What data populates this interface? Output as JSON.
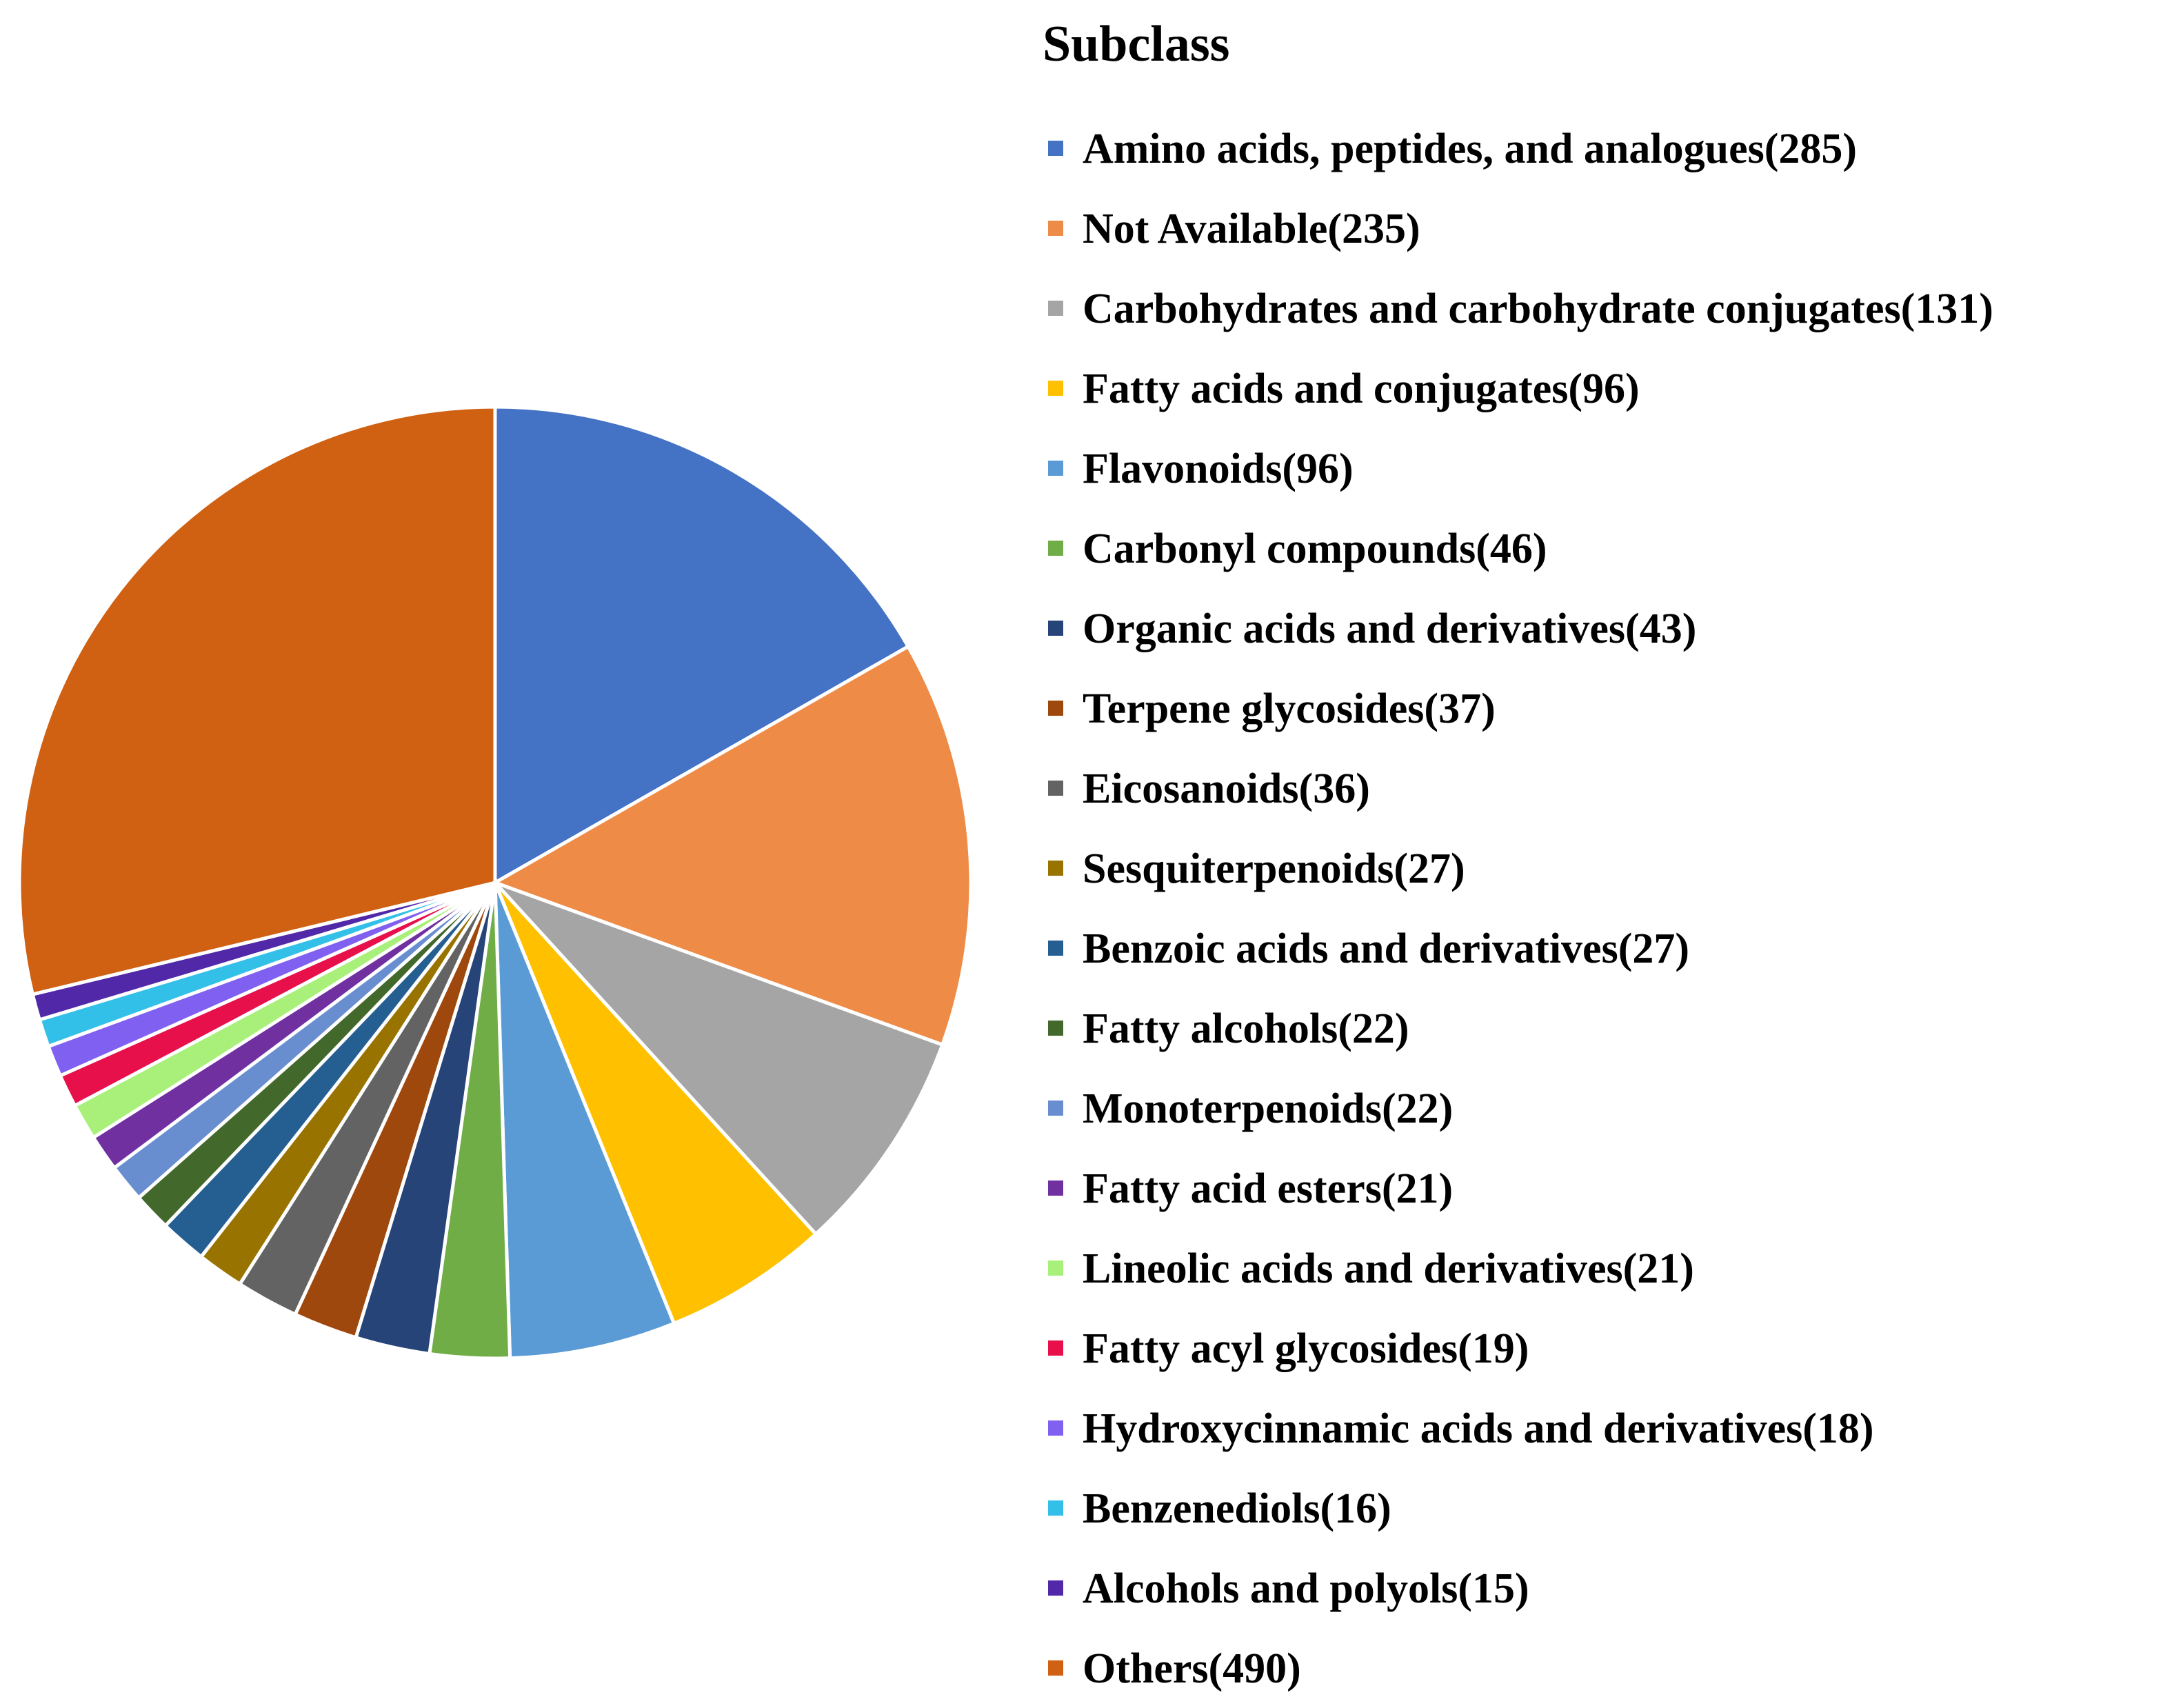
{
  "chart_data": {
    "type": "pie",
    "title": "",
    "legend_title": "Subclass",
    "legend_position": "right",
    "start_angle_deg": 0,
    "direction": "clockwise",
    "slices": [
      {
        "label": "Amino acids, peptides, and analogues(285)",
        "name": "Amino acids, peptides, and analogues",
        "value": 285,
        "color": "#4472C4"
      },
      {
        "label": "Not Available(235)",
        "name": "Not Available",
        "value": 235,
        "color": "#ED8B47"
      },
      {
        "label": "Carbohydrates and carbohydrate conjugates(131)",
        "name": "Carbohydrates and carbohydrate conjugates",
        "value": 131,
        "color": "#A5A5A5"
      },
      {
        "label": "Fatty acids and conjugates(96)",
        "name": "Fatty acids and conjugates",
        "value": 96,
        "color": "#FFC000"
      },
      {
        "label": "Flavonoids(96)",
        "name": "Flavonoids",
        "value": 96,
        "color": "#5B9BD5"
      },
      {
        "label": "Carbonyl compounds(46)",
        "name": "Carbonyl compounds",
        "value": 46,
        "color": "#70AD47"
      },
      {
        "label": "Organic acids and derivatives(43)",
        "name": "Organic acids and derivatives",
        "value": 43,
        "color": "#264478"
      },
      {
        "label": "Terpene glycosides(37)",
        "name": "Terpene glycosides",
        "value": 37,
        "color": "#9E480E"
      },
      {
        "label": "Eicosanoids(36)",
        "name": "Eicosanoids",
        "value": 36,
        "color": "#636363"
      },
      {
        "label": "Sesquiterpenoids(27)",
        "name": "Sesquiterpenoids",
        "value": 27,
        "color": "#997300"
      },
      {
        "label": "Benzoic acids and derivatives(27)",
        "name": "Benzoic acids and derivatives",
        "value": 27,
        "color": "#255E91"
      },
      {
        "label": "Fatty alcohols(22)",
        "name": "Fatty alcohols",
        "value": 22,
        "color": "#43682B"
      },
      {
        "label": "Monoterpenoids(22)",
        "name": "Monoterpenoids",
        "value": 22,
        "color": "#698ED0"
      },
      {
        "label": "Fatty acid esters(21)",
        "name": "Fatty acid esters",
        "value": 21,
        "color": "#7030A0"
      },
      {
        "label": "Lineolic acids and derivatives(21)",
        "name": "Lineolic acids and derivatives",
        "value": 21,
        "color": "#A9F07A"
      },
      {
        "label": "Fatty acyl glycosides(19)",
        "name": "Fatty acyl glycosides",
        "value": 19,
        "color": "#E8104A"
      },
      {
        "label": "Hydroxycinnamic acids and derivatives(18)",
        "name": "Hydroxycinnamic acids and derivatives",
        "value": 18,
        "color": "#7F60F0"
      },
      {
        "label": "Benzenediols(16)",
        "name": "Benzenediols",
        "value": 16,
        "color": "#33C0E8"
      },
      {
        "label": "Alcohols and polyols(15)",
        "name": "Alcohols and polyols",
        "value": 15,
        "color": "#5028A8"
      },
      {
        "label": "Others(490)",
        "name": "Others",
        "value": 490,
        "color": "#D06012"
      }
    ]
  }
}
